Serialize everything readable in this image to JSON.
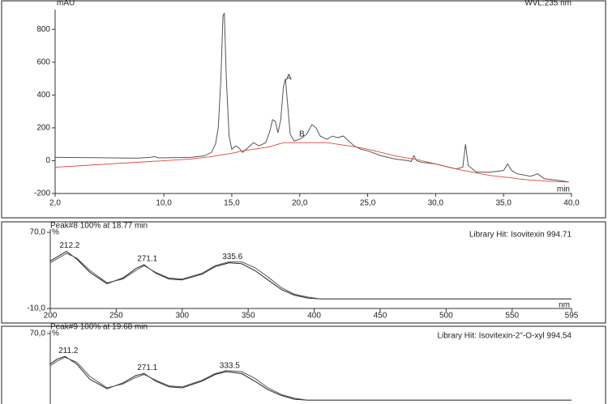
{
  "chart_data": [
    {
      "type": "line",
      "ylabel": "mAU",
      "xlabel": "min",
      "note": "WVL:235 nm",
      "x": [
        2.0,
        5.0,
        8.0,
        9.0,
        9.3,
        9.6,
        12.0,
        13.0,
        13.5,
        13.8,
        14.0,
        14.2,
        14.35,
        14.45,
        14.6,
        14.8,
        15.0,
        15.3,
        15.5,
        15.8,
        16.2,
        16.6,
        17.0,
        17.5,
        17.8,
        18.0,
        18.2,
        18.4,
        18.6,
        18.8,
        18.95,
        19.1,
        19.3,
        19.6,
        20.0,
        20.5,
        20.9,
        21.2,
        21.5,
        22.0,
        22.4,
        22.8,
        23.2,
        23.6,
        24.0,
        24.5,
        25.0,
        26.0,
        27.0,
        28.0,
        28.2,
        28.4,
        28.6,
        29.0,
        30.0,
        31.0,
        31.5,
        32.0,
        32.2,
        32.4,
        33.0,
        34.0,
        35.0,
        35.3,
        35.6,
        36.0,
        37.0,
        37.5,
        38.0,
        39.0,
        39.8
      ],
      "series": [
        {
          "color": "#555555",
          "values": [
            20,
            18,
            15,
            20,
            25,
            17,
            20,
            30,
            50,
            100,
            200,
            500,
            880,
            900,
            500,
            150,
            70,
            90,
            80,
            50,
            80,
            110,
            90,
            110,
            180,
            250,
            240,
            170,
            250,
            450,
            500,
            350,
            160,
            120,
            130,
            160,
            220,
            200,
            150,
            130,
            150,
            140,
            150,
            120,
            90,
            70,
            60,
            30,
            10,
            0,
            -5,
            30,
            0,
            -10,
            -20,
            -40,
            -50,
            -40,
            100,
            -30,
            -70,
            -70,
            -60,
            -20,
            -60,
            -80,
            -95,
            -80,
            -110,
            -120,
            -130
          ]
        },
        {
          "color": "#e0463c",
          "values": [
            -40,
            -25,
            -10,
            -5,
            -3,
            -2,
            10,
            20,
            25,
            30,
            32,
            35,
            37,
            38,
            40,
            42,
            45,
            50,
            55,
            60,
            65,
            70,
            75,
            80,
            85,
            90,
            95,
            100,
            105,
            108,
            110,
            110,
            110,
            110,
            110,
            110,
            110,
            110,
            110,
            110,
            105,
            100,
            95,
            90,
            85,
            78,
            70,
            50,
            30,
            15,
            12,
            10,
            8,
            0,
            -20,
            -40,
            -50,
            -60,
            -62,
            -64,
            -75,
            -90,
            -100,
            -102,
            -105,
            -110,
            -118,
            -120,
            -124,
            -128,
            -130
          ]
        }
      ],
      "annotations": [
        "A",
        "B"
      ],
      "xlim": [
        2.0,
        40.0
      ],
      "xticks": [
        {
          "value": 2.0,
          "label": "2,0"
        },
        {
          "value": 10.0,
          "label": "10,0"
        },
        {
          "value": 15.0,
          "label": "15,0"
        },
        {
          "value": 20.0,
          "label": "20,0"
        },
        {
          "value": 25.0,
          "label": "25,0"
        },
        {
          "value": 30.0,
          "label": "30,0"
        },
        {
          "value": 35.0,
          "label": "35,0"
        },
        {
          "value": 40.0,
          "label": "40,0"
        }
      ],
      "ylim": [
        -200,
        900
      ],
      "yticks": [
        -200,
        0,
        200,
        400,
        600,
        800
      ]
    },
    {
      "type": "line",
      "title": "Peak#8  100% at 18.77 min",
      "note": "Library Hit: Isovitexin 994.71",
      "ylabel": "%",
      "xlabel": "nm",
      "x": [
        200,
        205,
        212.2,
        220,
        230,
        243,
        255,
        265,
        271.1,
        280,
        290,
        300,
        315,
        325,
        335.6,
        345,
        355,
        365,
        375,
        385,
        395,
        405,
        450,
        500,
        595
      ],
      "series": [
        {
          "color": "#222222",
          "values": [
            40,
            44,
            50,
            42,
            28,
            16,
            22,
            32,
            36,
            27,
            21,
            20,
            26,
            34,
            38,
            37,
            30,
            20,
            10,
            4,
            1,
            0,
            0,
            0,
            0
          ]
        },
        {
          "color": "#555555",
          "values": [
            38,
            42,
            48,
            43,
            30,
            17,
            21,
            30,
            35,
            28,
            22,
            21,
            27,
            35,
            39,
            39,
            33,
            23,
            12,
            5,
            2,
            0,
            0,
            0,
            0
          ]
        }
      ],
      "peaks": [
        212.2,
        271.1,
        335.6
      ],
      "xlim": [
        200,
        595
      ],
      "xticks": [
        200,
        250,
        300,
        350,
        400,
        450,
        500,
        550,
        595
      ],
      "ylim": [
        -10,
        70
      ],
      "yticks": [
        {
          "value": -10,
          "label": "-10,0"
        },
        {
          "value": 70,
          "label": "70,0"
        }
      ]
    },
    {
      "type": "line",
      "title": "Peak#9  100% at 19.68 min",
      "note": "Library Hit: Isovitexin-2''-O-xyl 994.54",
      "ylabel": "%",
      "x": [
        200,
        205,
        211.2,
        220,
        230,
        243,
        255,
        265,
        271.1,
        280,
        290,
        300,
        315,
        325,
        333.5,
        345,
        355,
        365,
        375,
        385,
        395,
        450,
        595
      ],
      "series": [
        {
          "color": "#222222",
          "values": [
            38,
            43,
            46,
            38,
            22,
            12,
            18,
            26,
            28,
            20,
            14,
            13,
            20,
            27,
            30,
            28,
            20,
            11,
            5,
            1,
            0,
            0,
            0
          ]
        },
        {
          "color": "#555555",
          "values": [
            36,
            41,
            45,
            40,
            25,
            13,
            17,
            24,
            27,
            21,
            15,
            14,
            21,
            28,
            31,
            30,
            23,
            13,
            6,
            2,
            0,
            0,
            0
          ]
        }
      ],
      "peaks": [
        211.2,
        271.1,
        333.5
      ],
      "xlim": [
        200,
        595
      ],
      "ylim": [
        -10,
        70
      ],
      "yticks": [
        {
          "value": 70,
          "label": "70,0"
        }
      ]
    }
  ]
}
